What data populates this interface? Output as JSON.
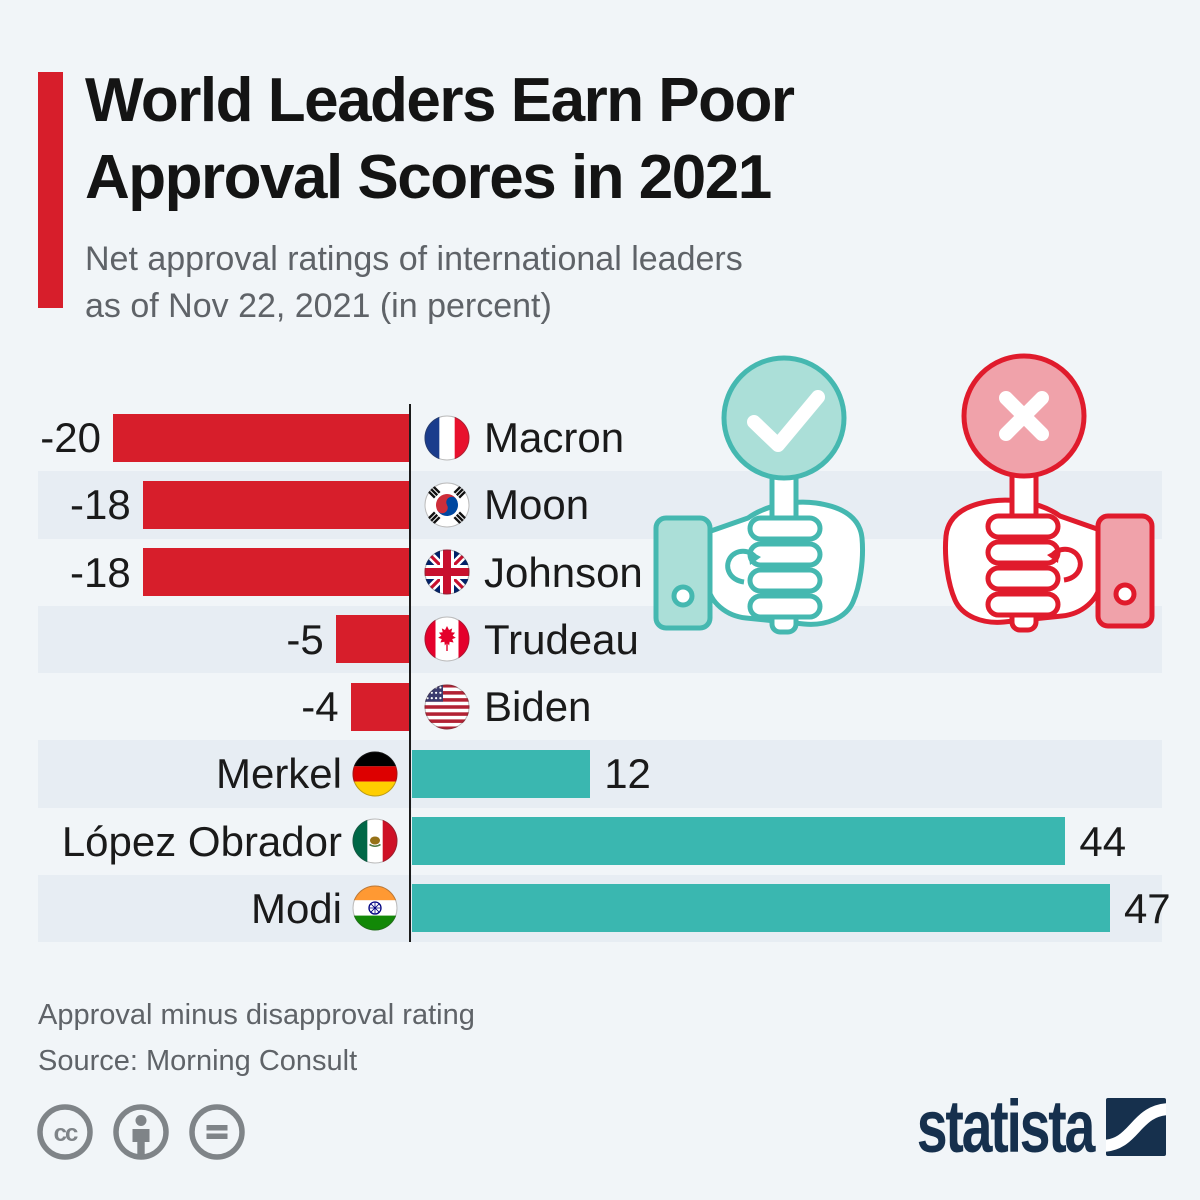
{
  "header": {
    "title_line1": "World Leaders Earn Poor",
    "title_line2": "Approval Scores in 2021",
    "subtitle_line1": "Net approval ratings of international leaders",
    "subtitle_line2": "as of Nov 22, 2021 (in percent)"
  },
  "chart_data": {
    "type": "bar",
    "orientation": "horizontal",
    "title": "Net approval ratings of international leaders as of Nov 22, 2021 (in percent)",
    "categories": [
      "Macron",
      "Moon",
      "Johnson",
      "Trudeau",
      "Biden",
      "Merkel",
      "López Obrador",
      "Modi"
    ],
    "values": [
      -20,
      -18,
      -18,
      -5,
      -4,
      12,
      44,
      47
    ],
    "flags": [
      "france",
      "south-korea",
      "united-kingdom",
      "canada",
      "united-states",
      "germany",
      "mexico",
      "india"
    ],
    "xlim": [
      -20,
      47
    ],
    "zero_axis_line": true,
    "grid": false,
    "negative_color": "#d71e2b",
    "positive_color": "#3ab7b0",
    "row_stripe_color": "#e7edf3",
    "value_label_color": "#1a1a1a"
  },
  "illustration": {
    "approve_icon": "hand-holding-check-sign-icon",
    "disapprove_icon": "hand-holding-x-sign-icon",
    "approve_fill": "#abdfd8",
    "approve_stroke": "#45b8b0",
    "disapprove_fill": "#f0a2aa",
    "disapprove_stroke": "#e01b2c"
  },
  "footer": {
    "note": "Approval minus disapproval rating",
    "source": "Source: Morning Consult"
  },
  "license": {
    "icons": [
      "cc-icon",
      "attribution-icon",
      "no-derivatives-icon"
    ],
    "color": "#7f8488"
  },
  "branding": {
    "logo_text": "statista",
    "logo_color": "#16304d"
  },
  "colors": {
    "background": "#f1f5f8",
    "accent_red": "#d71e2b",
    "title_text": "#141414",
    "muted_text": "#5f6368",
    "axis_line": "#1b1b1b"
  }
}
